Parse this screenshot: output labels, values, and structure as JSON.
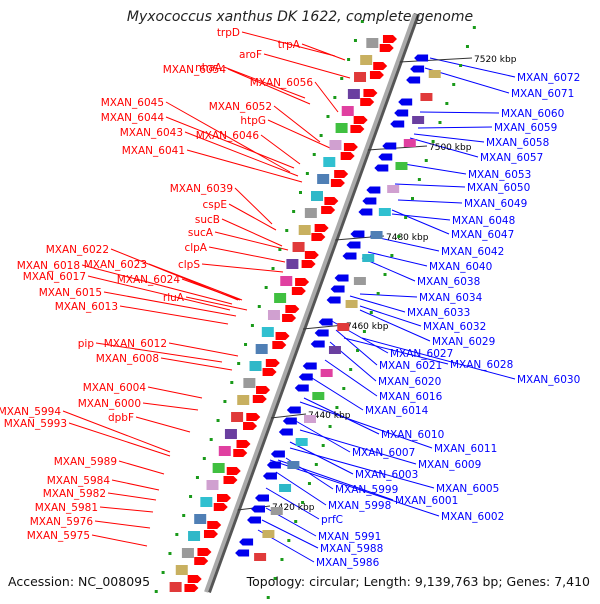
{
  "title": "Myxococcus xanthus DK 1622, complete genome",
  "footer": {
    "accession": "Accession: NC_008095",
    "summary": "Topology: circular; Length: 9,139,763 bp; Genes: 7,410"
  },
  "colors": {
    "left_strand": "#ff0000",
    "right_strand": "#0000ff",
    "backbone": "#888888",
    "kbp_label": "#000000"
  },
  "kbp_markers": [
    "7520 kbp",
    "7500 kbp",
    "7480 kbp",
    "7460 kbp",
    "7440 kbp",
    "7420 kbp"
  ],
  "left_genes": [
    "trpD",
    "trpA",
    "aroF",
    "nhaA",
    "MXAN_6054",
    "MXAN_6056",
    "MXAN_6052",
    "htpG",
    "MXAN_6045",
    "MXAN_6044",
    "MXAN_6043",
    "MXAN_6046",
    "MXAN_6041",
    "MXAN_6039",
    "cspE",
    "sucB",
    "sucA",
    "clpA",
    "clpS",
    "MXAN_6022",
    "MXAN_6023",
    "MXAN_6018",
    "MXAN_6017",
    "MXAN_6024",
    "MXAN_6015",
    "rluA",
    "MXAN_6013",
    "pip",
    "MXAN_6012",
    "MXAN_6008",
    "MXAN_6004",
    "MXAN_6000",
    "dpbF",
    "MXAN_5994",
    "MXAN_5993",
    "MXAN_5989",
    "MXAN_5984",
    "MXAN_5982",
    "MXAN_5981",
    "MXAN_5976",
    "MXAN_5975"
  ],
  "right_genes": [
    "MXAN_6072",
    "MXAN_6071",
    "MXAN_6060",
    "MXAN_6059",
    "MXAN_6058",
    "MXAN_6057",
    "MXAN_6053",
    "MXAN_6050",
    "MXAN_6049",
    "MXAN_6048",
    "MXAN_6047",
    "MXAN_6042",
    "MXAN_6040",
    "MXAN_6038",
    "MXAN_6034",
    "MXAN_6033",
    "MXAN_6032",
    "MXAN_6029",
    "MXAN_6027",
    "MXAN_6021",
    "MXAN_6028",
    "MXAN_6030",
    "MXAN_6020",
    "MXAN_6016",
    "MXAN_6014",
    "MXAN_6010",
    "MXAN_6011",
    "MXAN_6007",
    "MXAN_6009",
    "MXAN_6003",
    "MXAN_6005",
    "MXAN_5999",
    "MXAN_6001",
    "MXAN_5998",
    "MXAN_6002",
    "prfC",
    "MXAN_5991",
    "MXAN_5988",
    "MXAN_5986"
  ]
}
